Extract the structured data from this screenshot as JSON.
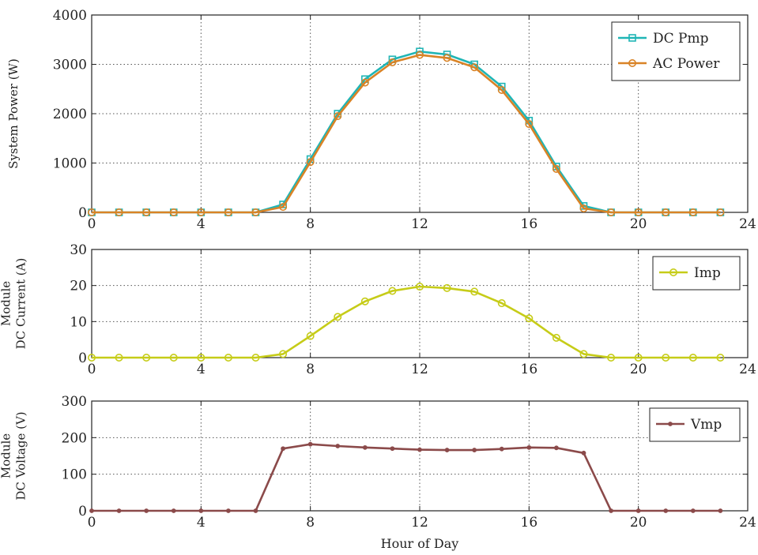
{
  "chart_data": [
    {
      "type": "line",
      "xlabel": "",
      "ylabel": "System Power (W)",
      "xlim": [
        0,
        24
      ],
      "ylim": [
        0,
        4000
      ],
      "xticks": [
        "0",
        "4",
        "8",
        "12",
        "16",
        "20",
        "24"
      ],
      "yticks": [
        "0",
        "1000",
        "2000",
        "3000",
        "4000"
      ],
      "grid": true,
      "legend_position": "top-right",
      "x": [
        0,
        1,
        2,
        3,
        4,
        5,
        6,
        7,
        8,
        9,
        10,
        11,
        12,
        13,
        14,
        15,
        16,
        17,
        18,
        19,
        20,
        21,
        22,
        23
      ],
      "series": [
        {
          "name": "DC Pmp",
          "color": "#1fb5b5",
          "marker": "square",
          "values": [
            0,
            0,
            0,
            0,
            0,
            0,
            0,
            160,
            1080,
            2000,
            2700,
            3100,
            3260,
            3200,
            3000,
            2550,
            1860,
            930,
            130,
            0,
            0,
            0,
            0,
            0
          ]
        },
        {
          "name": "AC Power",
          "color": "#d98326",
          "marker": "circle",
          "values": [
            0,
            0,
            0,
            0,
            0,
            0,
            0,
            110,
            1020,
            1950,
            2630,
            3040,
            3190,
            3130,
            2940,
            2480,
            1790,
            880,
            80,
            0,
            0,
            0,
            0,
            0
          ]
        }
      ]
    },
    {
      "type": "line",
      "xlabel": "",
      "ylabel": [
        "Module",
        "DC Current (A)"
      ],
      "xlim": [
        0,
        24
      ],
      "ylim": [
        0,
        30
      ],
      "xticks": [
        "0",
        "4",
        "8",
        "12",
        "16",
        "20",
        "24"
      ],
      "yticks": [
        "0",
        "10",
        "20",
        "30"
      ],
      "grid": true,
      "legend_position": "top-right",
      "x": [
        0,
        1,
        2,
        3,
        4,
        5,
        6,
        7,
        8,
        9,
        10,
        11,
        12,
        13,
        14,
        15,
        16,
        17,
        18,
        19,
        20,
        21,
        22,
        23
      ],
      "series": [
        {
          "name": "Imp",
          "color": "#c6cc18",
          "marker": "circle",
          "values": [
            0,
            0,
            0,
            0,
            0,
            0,
            0,
            1,
            6,
            11.3,
            15.6,
            18.5,
            19.7,
            19.3,
            18.3,
            15.1,
            10.9,
            5.5,
            1,
            0,
            0,
            0,
            0,
            0
          ]
        }
      ]
    },
    {
      "type": "line",
      "xlabel": "Hour of Day",
      "ylabel": [
        "Module",
        "DC Voltage (V)"
      ],
      "xlim": [
        0,
        24
      ],
      "ylim": [
        0,
        300
      ],
      "xticks": [
        "0",
        "4",
        "8",
        "12",
        "16",
        "20",
        "24"
      ],
      "yticks": [
        "0",
        "100",
        "200",
        "300"
      ],
      "grid": true,
      "legend_position": "top-right",
      "x": [
        0,
        1,
        2,
        3,
        4,
        5,
        6,
        7,
        8,
        9,
        10,
        11,
        12,
        13,
        14,
        15,
        16,
        17,
        18,
        19,
        20,
        21,
        22,
        23
      ],
      "series": [
        {
          "name": "Vmp",
          "color": "#8b4a4a",
          "marker": "dot",
          "values": [
            0,
            0,
            0,
            0,
            0,
            0,
            0,
            170,
            182,
            177,
            173,
            170,
            167,
            166,
            166,
            169,
            173,
            172,
            158,
            0,
            0,
            0,
            0,
            0
          ]
        }
      ]
    }
  ]
}
